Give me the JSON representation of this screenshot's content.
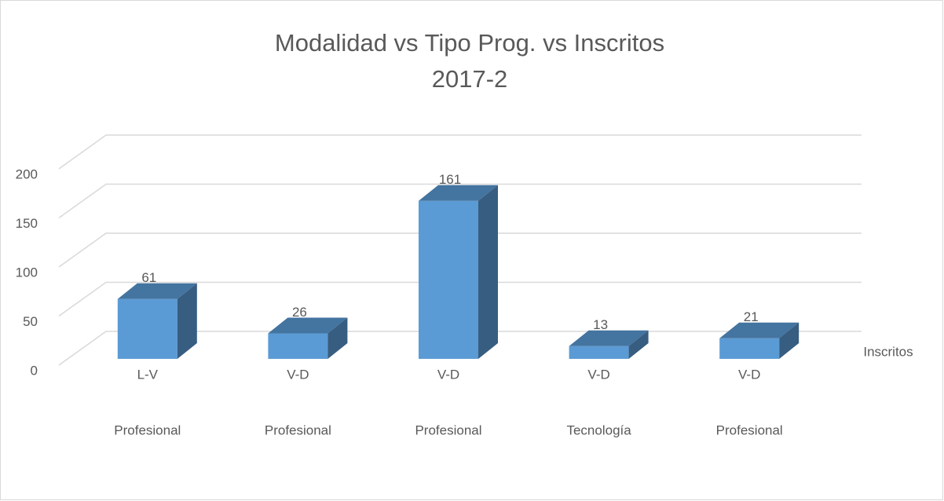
{
  "chart_data": {
    "type": "bar3d",
    "title": "Modalidad vs Tipo Prog. vs Inscritos",
    "subtitle": "2017-2",
    "categories": [
      [
        "L-V",
        "Profesional"
      ],
      [
        "V-D",
        "Profesional"
      ],
      [
        "V-D",
        "Profesional"
      ],
      [
        "V-D",
        "Tecnología"
      ],
      [
        "V-D",
        "Profesional"
      ]
    ],
    "series": [
      {
        "name": "Inscritos",
        "color": "#5b9bd5",
        "values": [
          61,
          26,
          161,
          13,
          21
        ]
      }
    ],
    "ylim": [
      0,
      200
    ],
    "yticks": [
      0,
      50,
      100,
      150,
      200
    ],
    "grid": true,
    "data_labels": true
  }
}
